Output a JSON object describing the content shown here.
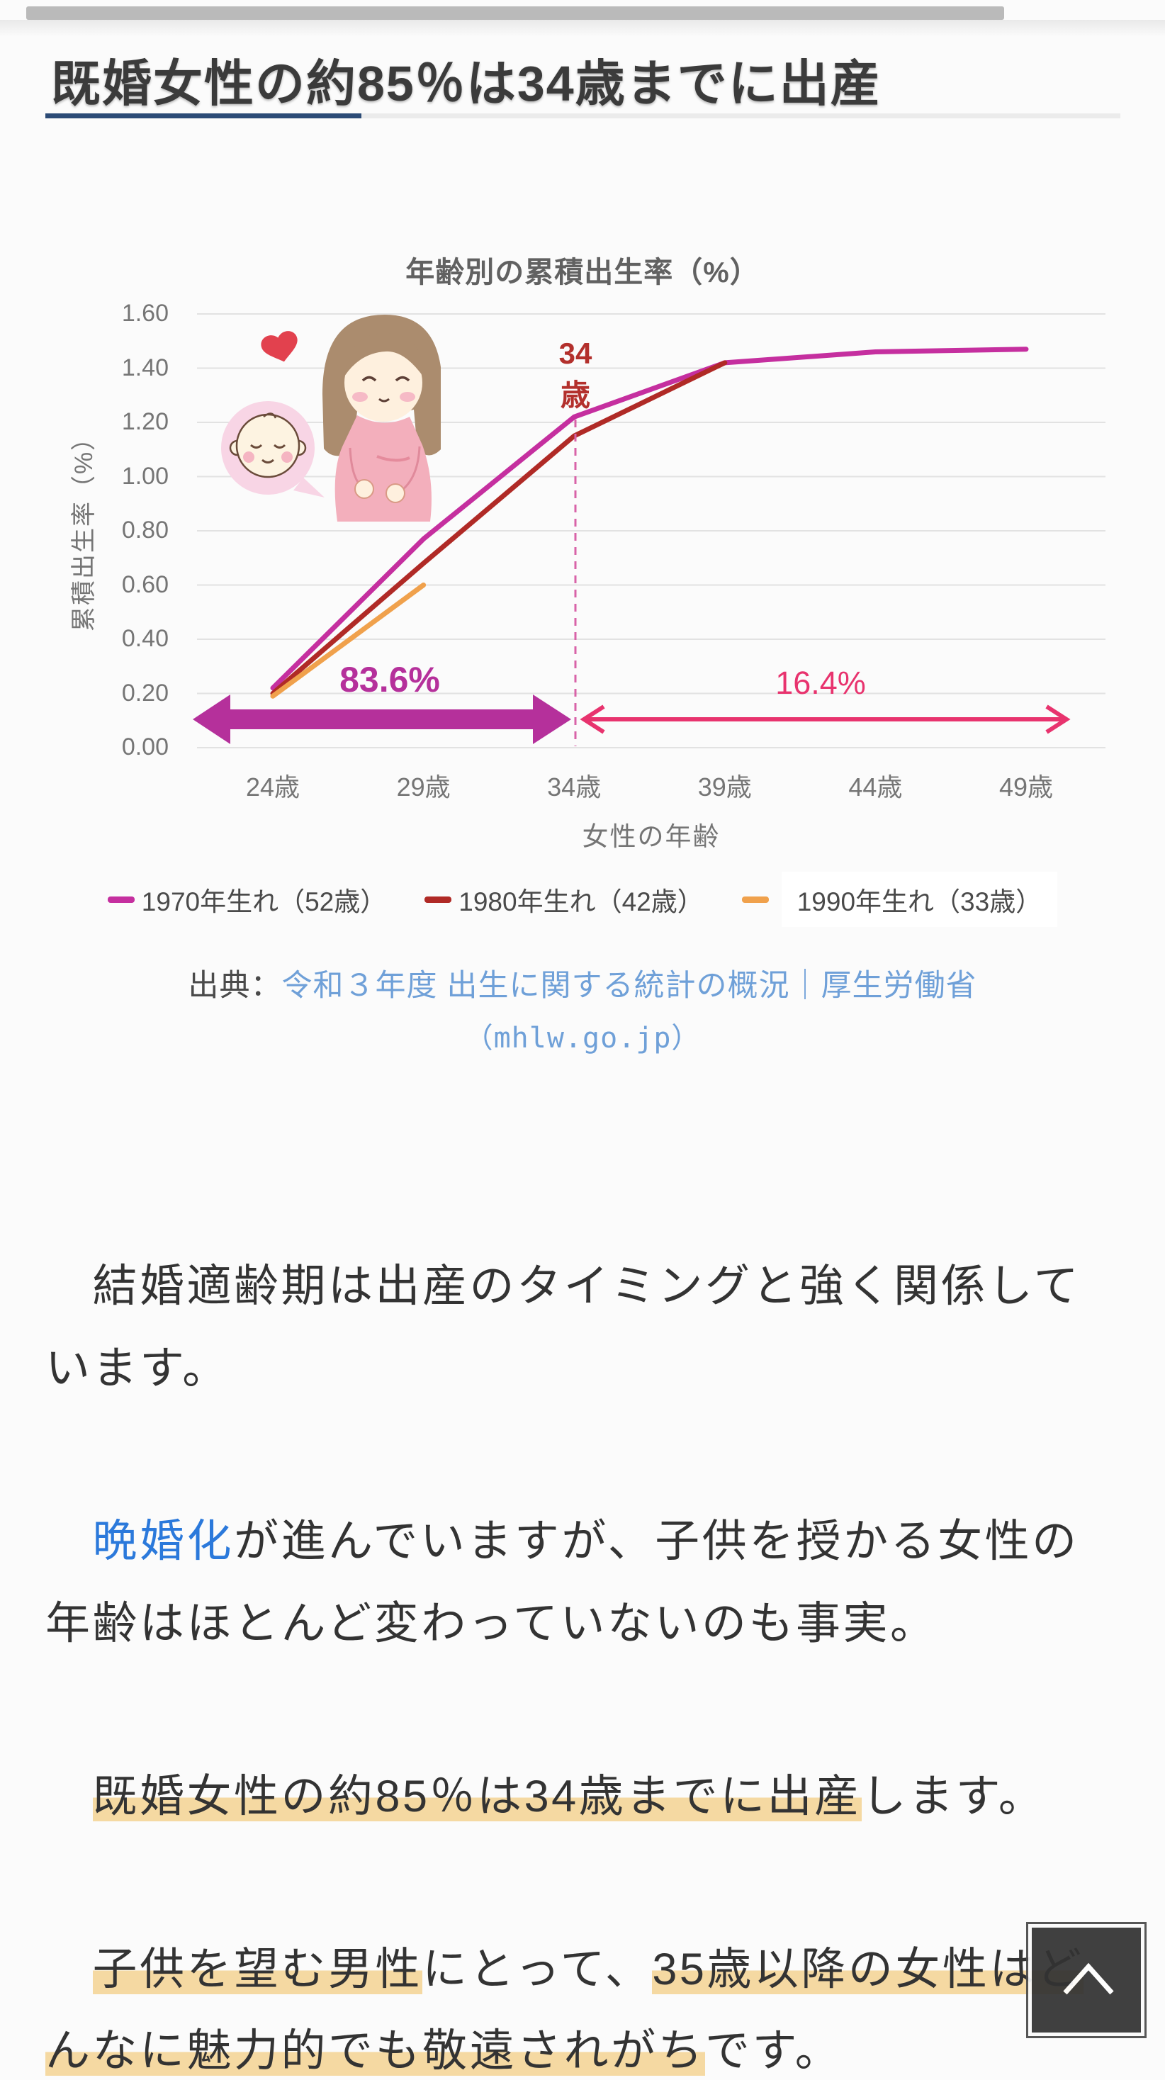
{
  "page": {
    "heading": "既婚女性の約85％は34歳までに出産"
  },
  "theme": {
    "heading-text": "#3B3B3B",
    "rule-navy": "#2C4B76",
    "line-1970": "#C52F9F",
    "line-1980": "#B02A26",
    "line-1990": "#F0A14C",
    "arrow-thick": "#B5309B",
    "arrow-thin": "#E8336E",
    "dashed-line": "#D863A8",
    "annotation-red": "#B3302C",
    "link-blue": "#2B79DB",
    "source-link-blue": "#6FA0D8",
    "highlight": "#F5D9A2"
  },
  "chart": {
    "title": "年齢別の累積出生率（%）",
    "y_axis_title": "累積出生率（%）",
    "x_axis_title": "女性の年齢",
    "y_ticks": [
      "1.60",
      "1.40",
      "1.20",
      "1.00",
      "0.80",
      "0.60",
      "0.40",
      "0.20",
      "0.00"
    ],
    "x_ticks": [
      "24歳",
      "29歳",
      "34歳",
      "39歳",
      "44歳",
      "49歳"
    ],
    "annotation_age_line1": "34",
    "annotation_age_line2": "歳",
    "arrow_left_label": "83.6%",
    "arrow_right_label": "16.4%"
  },
  "chart_data": {
    "type": "line",
    "title": "年齢別の累積出生率（%）",
    "xlabel": "女性の年齢",
    "ylabel": "累積出生率（%）",
    "ylim": [
      0,
      1.6
    ],
    "x_ticks_ages": [
      24,
      29,
      34,
      39,
      44,
      49
    ],
    "grid": true,
    "legend_position": "bottom",
    "series": [
      {
        "name": "1970年生れ（52歳）",
        "color_var": "line-1970",
        "x": [
          24,
          29,
          34,
          39,
          44,
          49
        ],
        "values": [
          0.22,
          0.77,
          1.22,
          1.42,
          1.46,
          1.47
        ]
      },
      {
        "name": "1980年生れ（42歳）",
        "color_var": "line-1980",
        "x": [
          24,
          29,
          34,
          39
        ],
        "values": [
          0.2,
          0.68,
          1.15,
          1.42
        ]
      },
      {
        "name": "1990年生れ（33歳）",
        "color_var": "line-1990",
        "x": [
          24,
          29
        ],
        "values": [
          0.19,
          0.6
        ]
      }
    ],
    "annotations": {
      "age_marker": "34歳",
      "born_before_34_share": "83.6%",
      "born_after_34_share": "16.4%"
    }
  },
  "source": {
    "prefix": "出典：",
    "link_text": "令和３年度 出生に関する統計の概況｜厚生労働省",
    "link_text_line2": "（mhlw.go.jp）"
  },
  "paragraphs": [
    {
      "id": "p1",
      "segments": [
        {
          "style": "plain",
          "text": "　結婚適齢期は出産のタイミングと強く関係しています。"
        }
      ]
    },
    {
      "id": "p2",
      "segments": [
        {
          "style": "plain",
          "text": "　"
        },
        {
          "style": "link",
          "text": "晩婚化"
        },
        {
          "style": "plain",
          "text": "が進んでいますが、子供を授かる女性の年齢はほとんど変わっていないのも事実。"
        }
      ]
    },
    {
      "id": "p3",
      "segments": [
        {
          "style": "plain",
          "text": "　"
        },
        {
          "style": "highlight",
          "text": "既婚女性の約85％は34歳までに出産"
        },
        {
          "style": "plain",
          "text": "します。"
        }
      ]
    },
    {
      "id": "p4",
      "segments": [
        {
          "style": "plain",
          "text": "　"
        },
        {
          "style": "highlight",
          "text": "子供を望む男性"
        },
        {
          "style": "plain",
          "text": "にとって、"
        },
        {
          "style": "highlight",
          "text": "35歳以降の女性はどんなに魅力的でも敬遠されがち"
        },
        {
          "style": "plain",
          "text": "です。"
        }
      ]
    }
  ]
}
